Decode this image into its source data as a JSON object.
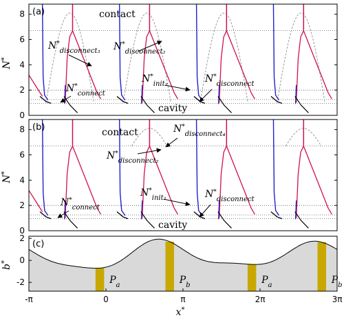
{
  "chart_data": [
    {
      "type": "line",
      "panel": "(a)",
      "ylabel": "N*",
      "ylim": [
        0,
        8.8
      ],
      "yticks": [
        "0",
        "2",
        "4",
        "6",
        "8"
      ],
      "reference_lines": [
        6.7,
        2.0,
        1.25,
        0.95
      ],
      "regions": [
        "contact",
        "cavity"
      ],
      "annotations": [
        {
          "base": "N",
          "sub": "disconnect₃"
        },
        {
          "base": "N",
          "sub": "disconnect₂"
        },
        {
          "base": "N",
          "sub": "connect"
        },
        {
          "base": "N",
          "sub": "init₂"
        },
        {
          "base": "N",
          "sub": "disconnect"
        }
      ],
      "series_colors": {
        "closing": "#1f1fd0",
        "opening": "#d0104c",
        "cavity": "#000000",
        "envelope": "#9a9a9a"
      }
    },
    {
      "type": "line",
      "panel": "(b)",
      "ylabel": "N*",
      "ylim": [
        0,
        8.8
      ],
      "yticks": [
        "0",
        "2",
        "4",
        "6",
        "8"
      ],
      "reference_lines": [
        6.7,
        2.0,
        1.25,
        0.95
      ],
      "regions": [
        "contact",
        "cavity"
      ],
      "annotations": [
        {
          "base": "N",
          "sub": "disconnect₄"
        },
        {
          "base": "N",
          "sub": "disconnect₂"
        },
        {
          "base": "N",
          "sub": "connect"
        },
        {
          "base": "N",
          "sub": "init₂"
        },
        {
          "base": "N",
          "sub": "disconnect"
        }
      ]
    },
    {
      "type": "area",
      "panel": "(c)",
      "ylabel": "b*",
      "xlabel": "x*",
      "ylim": [
        -2.8,
        2.2
      ],
      "yticks": [
        "-2",
        "0",
        "2"
      ],
      "xticks": [
        "-π",
        "0",
        "π",
        "2π",
        "3π"
      ],
      "xlim": [
        -3.1416,
        9.4248
      ],
      "fill_color": "#d9d9d9",
      "bar_color": "#c8a800",
      "bars": [
        {
          "x": -0.25,
          "label": "Pa"
        },
        {
          "x": 2.6,
          "label": "Pb"
        },
        {
          "x": 5.95,
          "label": "Pa"
        },
        {
          "x": 8.8,
          "label": "Pb"
        }
      ]
    }
  ]
}
